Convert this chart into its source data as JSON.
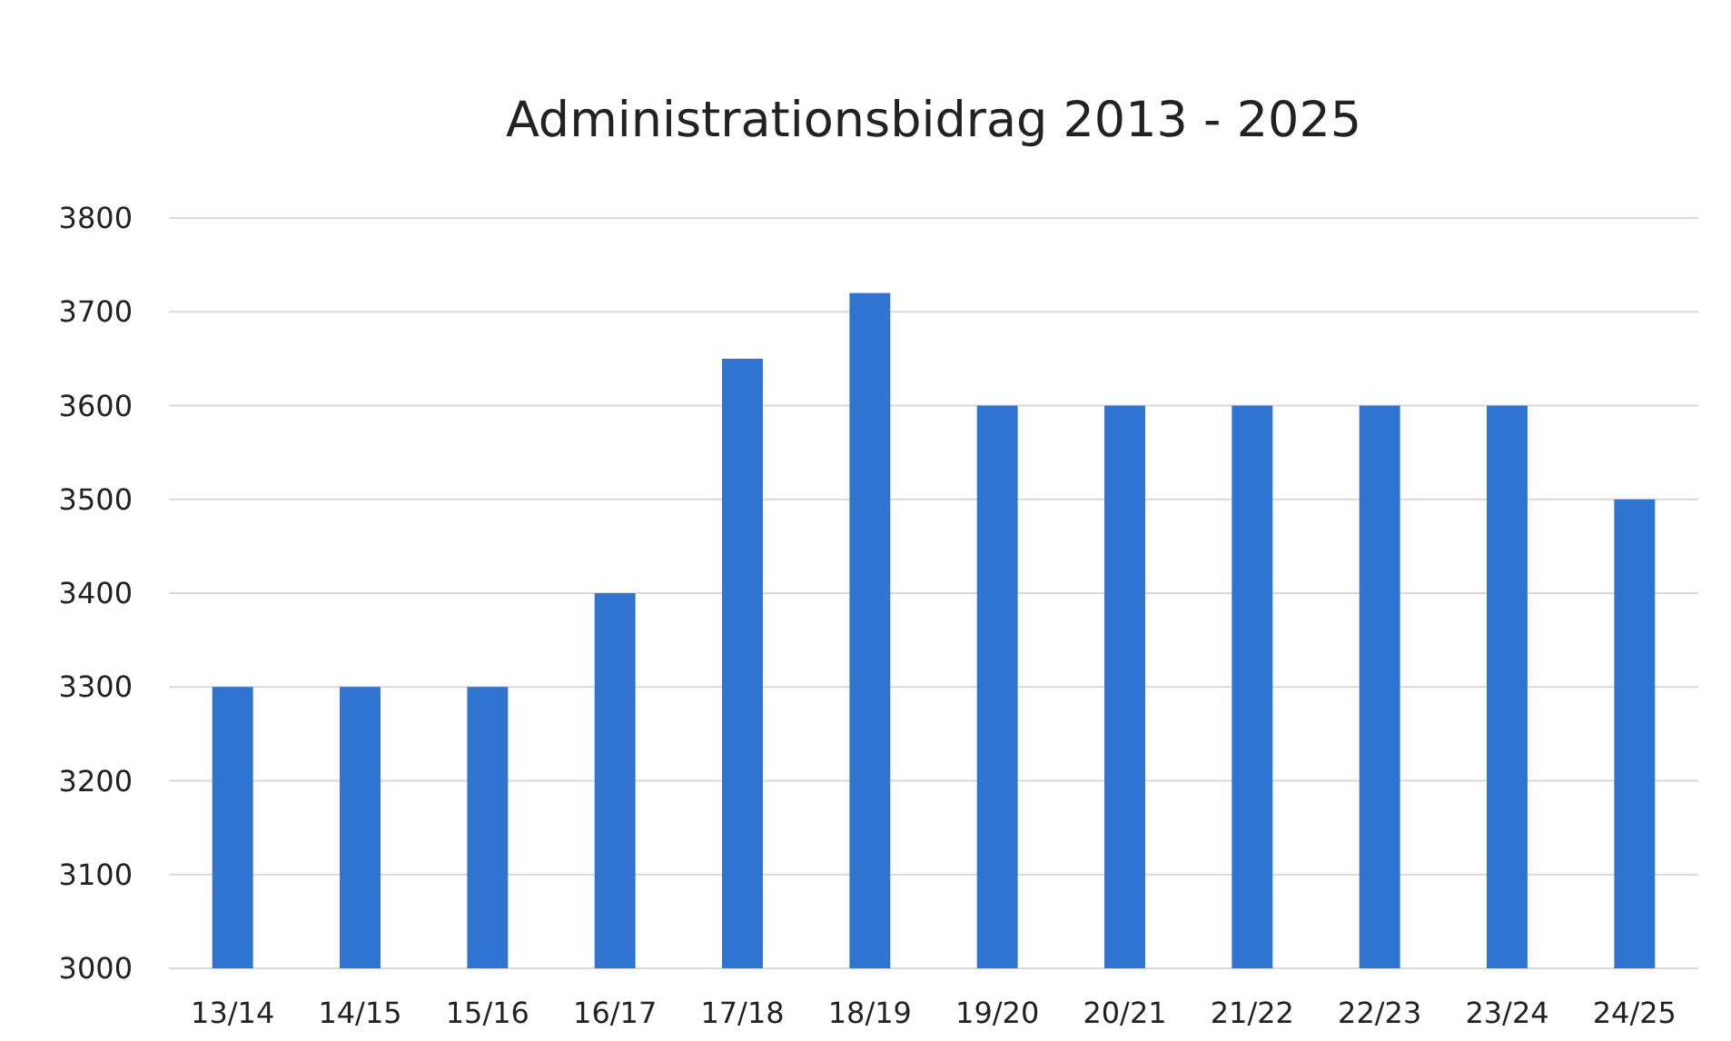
{
  "chart_data": {
    "type": "bar",
    "title": "Administrationsbidrag 2013 - 2025",
    "categories": [
      "13/14",
      "14/15",
      "15/16",
      "16/17",
      "17/18",
      "18/19",
      "19/20",
      "20/21",
      "21/22",
      "22/23",
      "23/24",
      "24/25"
    ],
    "values": [
      3300,
      3300,
      3300,
      3400,
      3650,
      3720,
      3600,
      3600,
      3600,
      3600,
      3600,
      3500
    ],
    "color": "#2f74d0",
    "ylim": [
      3000,
      3800
    ],
    "yticks": [
      3000,
      3100,
      3200,
      3300,
      3400,
      3500,
      3600,
      3700,
      3800
    ],
    "grid": "y"
  }
}
